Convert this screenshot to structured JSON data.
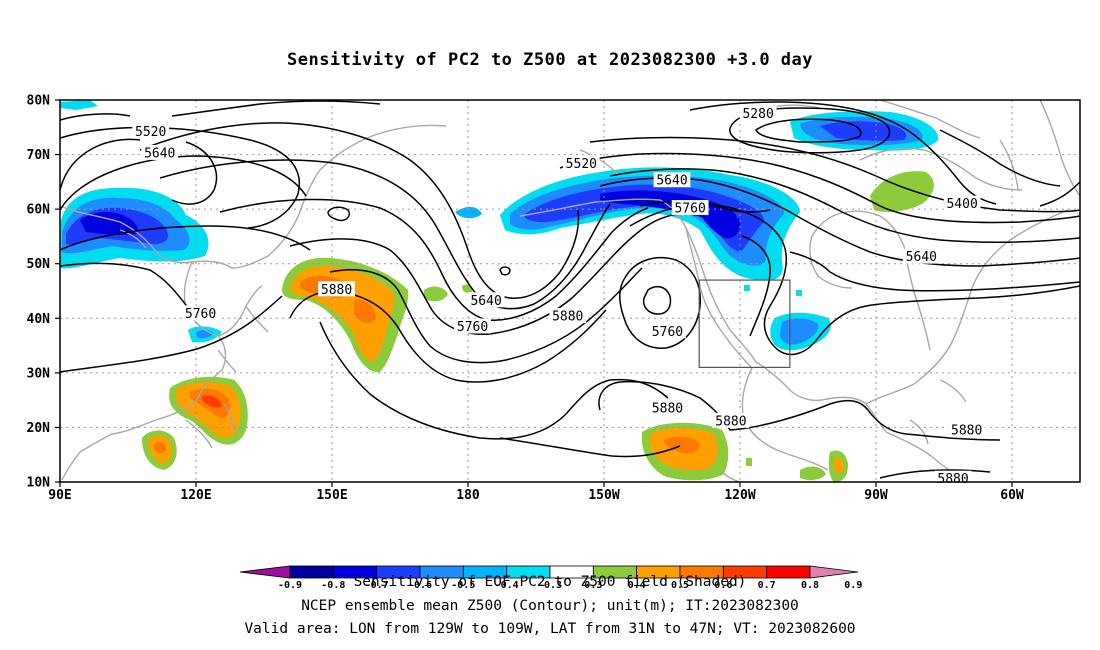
{
  "title": "Sensitivity of PC2 to Z500 at 2023082300 +3.0 day",
  "lat_labels": [
    "10N",
    "20N",
    "30N",
    "40N",
    "50N",
    "60N",
    "70N",
    "80N"
  ],
  "lon_labels": [
    "90E",
    "120E",
    "150E",
    "180",
    "150W",
    "120W",
    "90W",
    "60W"
  ],
  "contour_labels": [
    {
      "text": "5520",
      "lon": 110,
      "lat": 74.2
    },
    {
      "text": "5640",
      "lon": 112,
      "lat": 70.3
    },
    {
      "text": "5280",
      "lon": 244,
      "lat": 77.5
    },
    {
      "text": "5520",
      "lon": 205,
      "lat": 68.4
    },
    {
      "text": "5640",
      "lon": 225,
      "lat": 65.3
    },
    {
      "text": "5760",
      "lon": 229,
      "lat": 60.2
    },
    {
      "text": "5400",
      "lon": 289,
      "lat": 61.0
    },
    {
      "text": "5640",
      "lon": 280,
      "lat": 51.3
    },
    {
      "text": "5880",
      "lon": 151,
      "lat": 45.3
    },
    {
      "text": "5760",
      "lon": 121,
      "lat": 40.9
    },
    {
      "text": "5640",
      "lon": 184,
      "lat": 43.3
    },
    {
      "text": "5760",
      "lon": 181,
      "lat": 38.5
    },
    {
      "text": "5880",
      "lon": 202,
      "lat": 40.4
    },
    {
      "text": "5760",
      "lon": 224,
      "lat": 37.6
    },
    {
      "text": "5880",
      "lon": 224,
      "lat": 23.6
    },
    {
      "text": "5880",
      "lon": 238,
      "lat": 21.2
    },
    {
      "text": "5880",
      "lon": 290,
      "lat": 19.5
    },
    {
      "text": "5880",
      "lon": 287,
      "lat": 10.6
    }
  ],
  "valid_box": {
    "lon_min": 231,
    "lon_max": 251,
    "lat_min": 31,
    "lat_max": 47
  },
  "colorbar": {
    "levels": [
      "-0.9",
      "-0.8",
      "-0.7",
      "-0.6",
      "-0.5",
      "-0.4",
      "-0.3",
      "0.3",
      "0.4",
      "0.5",
      "0.6",
      "0.7",
      "0.8",
      "0.9"
    ],
    "colors": [
      "#9f0f9f",
      "#00009f",
      "#0000e0",
      "#1e3cff",
      "#1e8cff",
      "#00b4ff",
      "#00dcf0",
      "#ffffff",
      "#8ccc3c",
      "#ffa000",
      "#ff7800",
      "#ff3c00",
      "#ff0000",
      "#e080b0"
    ]
  },
  "footer": {
    "line1": "Sensitivity of EOF PC2 to Z500 field (Shaded)",
    "line2": "NCEP ensemble mean Z500 (Contour); unit(m); IT:2023082300",
    "line3": "Valid area: LON from 129W to 109W, LAT from 31N to 47N; VT: 2023082600"
  }
}
